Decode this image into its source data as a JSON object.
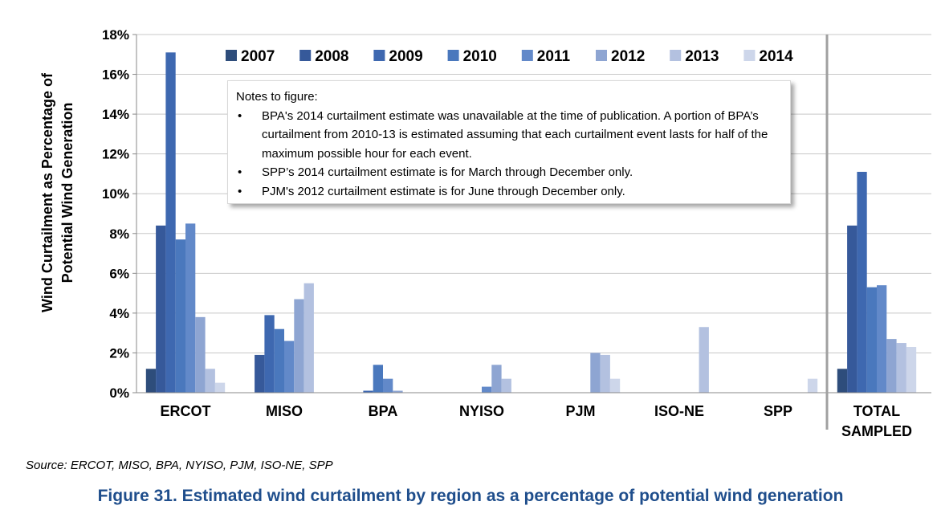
{
  "chart_data": {
    "type": "bar",
    "ylabel_line1": "Wind Curtailment as Percentage of",
    "ylabel_line2": "Potential Wind Generation",
    "ylim": [
      0,
      18
    ],
    "yticks": [
      0,
      2,
      4,
      6,
      8,
      10,
      12,
      14,
      16,
      18
    ],
    "ytick_labels": [
      "0%",
      "2%",
      "4%",
      "6%",
      "8%",
      "10%",
      "12%",
      "14%",
      "16%",
      "18%"
    ],
    "grid": true,
    "legend_position": "top",
    "categories": [
      "ERCOT",
      "MISO",
      "BPA",
      "NYISO",
      "PJM",
      "ISO-NE",
      "SPP",
      "TOTAL SAMPLED"
    ],
    "category_labels": [
      [
        "ERCOT"
      ],
      [
        "MISO"
      ],
      [
        "BPA"
      ],
      [
        "NYISO"
      ],
      [
        "PJM"
      ],
      [
        "ISO-NE"
      ],
      [
        "SPP"
      ],
      [
        "TOTAL",
        "SAMPLED"
      ]
    ],
    "series": [
      {
        "name": "2007",
        "color": "#2e4d7b",
        "values": [
          1.2,
          0,
          0,
          0,
          0,
          0,
          0,
          1.2
        ]
      },
      {
        "name": "2008",
        "color": "#36599a",
        "values": [
          8.4,
          1.9,
          0,
          0,
          0,
          0,
          0,
          8.4
        ]
      },
      {
        "name": "2009",
        "color": "#3e68b0",
        "values": [
          17.1,
          3.9,
          0.1,
          0,
          0,
          0,
          0,
          11.1
        ]
      },
      {
        "name": "2010",
        "color": "#4a78bd",
        "values": [
          7.7,
          3.2,
          1.4,
          0,
          0,
          0,
          0,
          5.3
        ]
      },
      {
        "name": "2011",
        "color": "#6289c9",
        "values": [
          8.5,
          2.6,
          0.7,
          0.3,
          0,
          0,
          0,
          5.4
        ]
      },
      {
        "name": "2012",
        "color": "#8ea5d2",
        "values": [
          3.8,
          4.7,
          0.1,
          1.4,
          2.0,
          0,
          0,
          2.7
        ]
      },
      {
        "name": "2013",
        "color": "#b3c1e0",
        "values": [
          1.2,
          5.5,
          0,
          0.7,
          1.9,
          3.3,
          0,
          2.5
        ]
      },
      {
        "name": "2014",
        "color": "#cdd6ea",
        "values": [
          0.5,
          0,
          0,
          0,
          0.7,
          0,
          0.7,
          2.3
        ]
      }
    ]
  },
  "notes": {
    "heading": "Notes to figure:",
    "items": [
      "BPA's 2014 curtailment estimate was unavailable at the time of publication. A portion of BPA’s curtailment from 2010-13 is estimated assuming that each curtailment event lasts for half of the maximum possible hour for each event.",
      "SPP’s 2014 curtailment estimate is for March through December only.",
      "PJM's 2012 curtailment estimate is for June through December only."
    ]
  },
  "source": "Source:  ERCOT, MISO, BPA, NYISO, PJM, ISO-NE, SPP",
  "caption": "Figure 31. Estimated wind curtailment by region as a percentage of potential wind generation",
  "colors": {
    "caption": "#1f4e8c",
    "grid": "#c8c8c8",
    "separator": "#a0a0a0"
  }
}
